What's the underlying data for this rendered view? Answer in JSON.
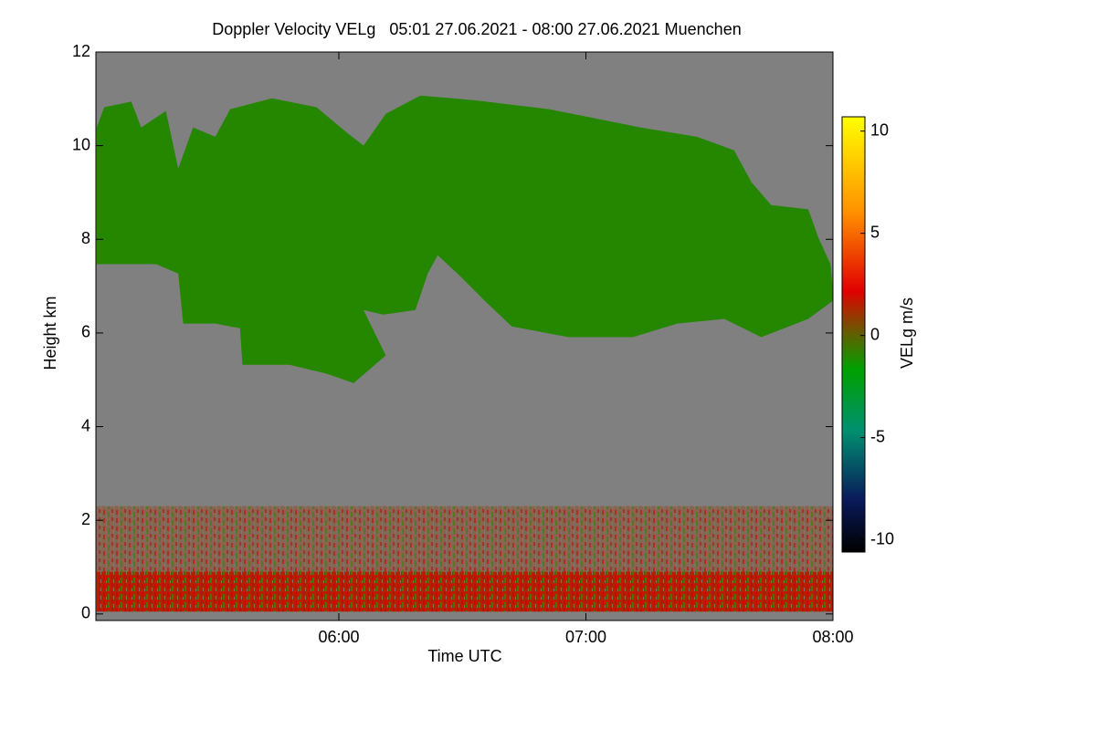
{
  "chart_data": {
    "type": "heatmap",
    "title": "Doppler Velocity VELg   05:01 27.06.2021 - 08:00 27.06.2021 Muenchen",
    "x_label": "Time UTC",
    "y_label": "Height km",
    "colorbar_label": "VELg m/s",
    "xlim": [
      5.0167,
      8.0
    ],
    "xticks": [
      {
        "value": 6,
        "label": "06:00"
      },
      {
        "value": 7,
        "label": "07:00"
      },
      {
        "value": 8,
        "label": "08:00"
      }
    ],
    "ylim": [
      -0.14,
      12
    ],
    "yticks": [
      0,
      2,
      4,
      6,
      8,
      10,
      12
    ],
    "vlim": [
      -10.6,
      10.7
    ],
    "vticks": [
      -10,
      -5,
      0,
      5,
      10
    ],
    "background_color": "#808080",
    "regions": [
      {
        "value": -1,
        "x": [
          5.02,
          5.05,
          5.16,
          5.2,
          5.3,
          5.35,
          5.41,
          5.5,
          5.56,
          5.73,
          5.91,
          6.03,
          6.1,
          6.19,
          6.33,
          6.55,
          6.85,
          7.04,
          7.22,
          7.45,
          7.6,
          7.67,
          7.75,
          7.9,
          7.94,
          7.99,
          8.0,
          8.0,
          7.9,
          7.71,
          7.56,
          7.37,
          7.19,
          6.93,
          6.7,
          6.59,
          6.48,
          6.4,
          6.36,
          6.31,
          6.18,
          6.1,
          6.19,
          6.06,
          5.95,
          5.8,
          5.61,
          5.6,
          5.5,
          5.37,
          5.35,
          5.26,
          5.02
        ],
        "y": [
          10.39,
          10.82,
          10.94,
          10.39,
          10.74,
          9.51,
          10.39,
          10.19,
          10.78,
          11.01,
          10.82,
          10.29,
          10.0,
          10.68,
          11.07,
          10.97,
          10.78,
          10.58,
          10.39,
          10.19,
          9.9,
          9.22,
          8.73,
          8.64,
          8.05,
          7.47,
          6.88,
          6.69,
          6.3,
          5.91,
          6.3,
          6.2,
          5.91,
          5.91,
          6.14,
          6.69,
          7.27,
          7.66,
          7.27,
          6.49,
          6.39,
          6.49,
          5.52,
          4.93,
          5.13,
          5.32,
          5.32,
          6.1,
          6.2,
          6.2,
          7.27,
          7.47,
          7.47
        ]
      },
      {
        "value": 1,
        "x": [
          5.02,
          8.0,
          8.0,
          5.02
        ],
        "y": [
          2.3,
          2.3,
          0.9,
          0.9
        ]
      },
      {
        "value": 1.5,
        "x": [
          5.02,
          8.0,
          8.0,
          5.02
        ],
        "y": [
          0.9,
          0.9,
          0.05,
          0.05
        ]
      }
    ]
  }
}
